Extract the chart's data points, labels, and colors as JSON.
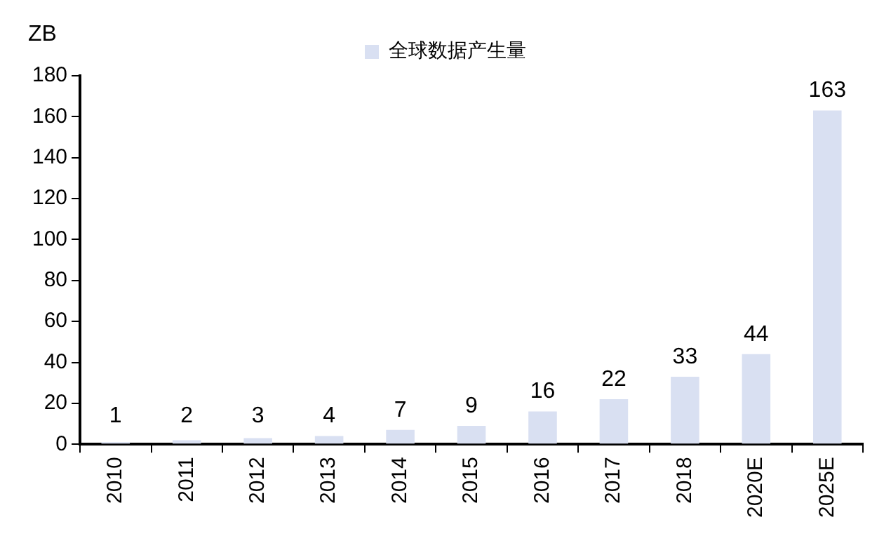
{
  "chart_data": {
    "type": "bar",
    "ylabel": "ZB",
    "categories": [
      "2010",
      "2011",
      "2012",
      "2013",
      "2014",
      "2015",
      "2016",
      "2017",
      "2018",
      "2020E",
      "2025E"
    ],
    "series": [
      {
        "name": "全球数据产生量",
        "color": "#d9e0f2",
        "values": [
          1,
          2,
          3,
          4,
          7,
          9,
          16,
          22,
          33,
          44,
          163
        ]
      }
    ],
    "ylim": [
      0,
      180
    ],
    "yticks": [
      0,
      20,
      40,
      60,
      80,
      100,
      120,
      140,
      160,
      180
    ],
    "data_labels": true,
    "grid": false,
    "legend": "top"
  }
}
